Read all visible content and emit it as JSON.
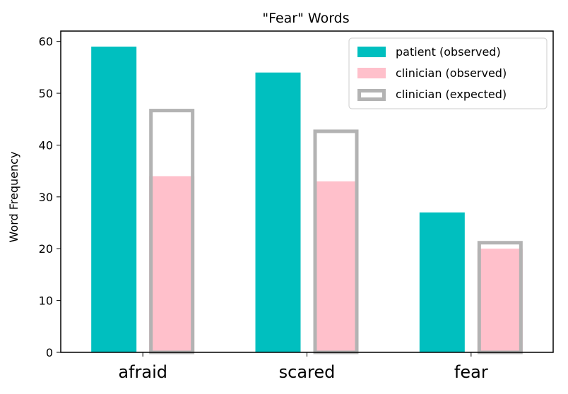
{
  "chart_data": {
    "type": "bar",
    "title": "\"Fear\" Words",
    "xlabel": "",
    "ylabel": "Word Frequency",
    "categories": [
      "afraid",
      "scared",
      "fear"
    ],
    "ylim": [
      0,
      62
    ],
    "yticks": [
      0,
      10,
      20,
      30,
      40,
      50,
      60
    ],
    "grid": false,
    "legend_position": "top-right",
    "series": [
      {
        "name": "patient (observed)",
        "values": [
          59,
          54,
          27
        ],
        "color": "#00bfbf",
        "style": "filled"
      },
      {
        "name": "clinician (observed)",
        "values": [
          34,
          33,
          20
        ],
        "color": "#ffc0cb",
        "style": "filled"
      },
      {
        "name": "clinician (expected)",
        "values": [
          47,
          43,
          21.5
        ],
        "color": "#b3b3b3",
        "style": "outline"
      }
    ]
  }
}
